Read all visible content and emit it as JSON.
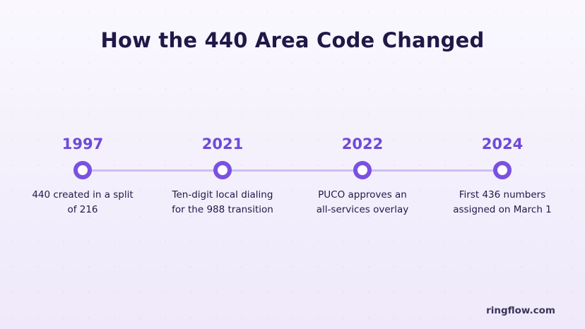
{
  "title": "How the 440 Area Code Changed",
  "milestones": [
    {
      "year": "1997",
      "description": "440 created in a split of 216"
    },
    {
      "year": "2021",
      "description": "Ten-digit local dialing for the 988 transition"
    },
    {
      "year": "2022",
      "description": "PUCO approves an all-services overlay"
    },
    {
      "year": "2024",
      "description": "First 436 numbers assigned on March 1"
    }
  ],
  "brand": "ringflow.com",
  "colors": {
    "accent": "#7a52e0",
    "year_text": "#6f4ad8",
    "track": "#cdbdf4",
    "title_text": "#1f1947"
  }
}
